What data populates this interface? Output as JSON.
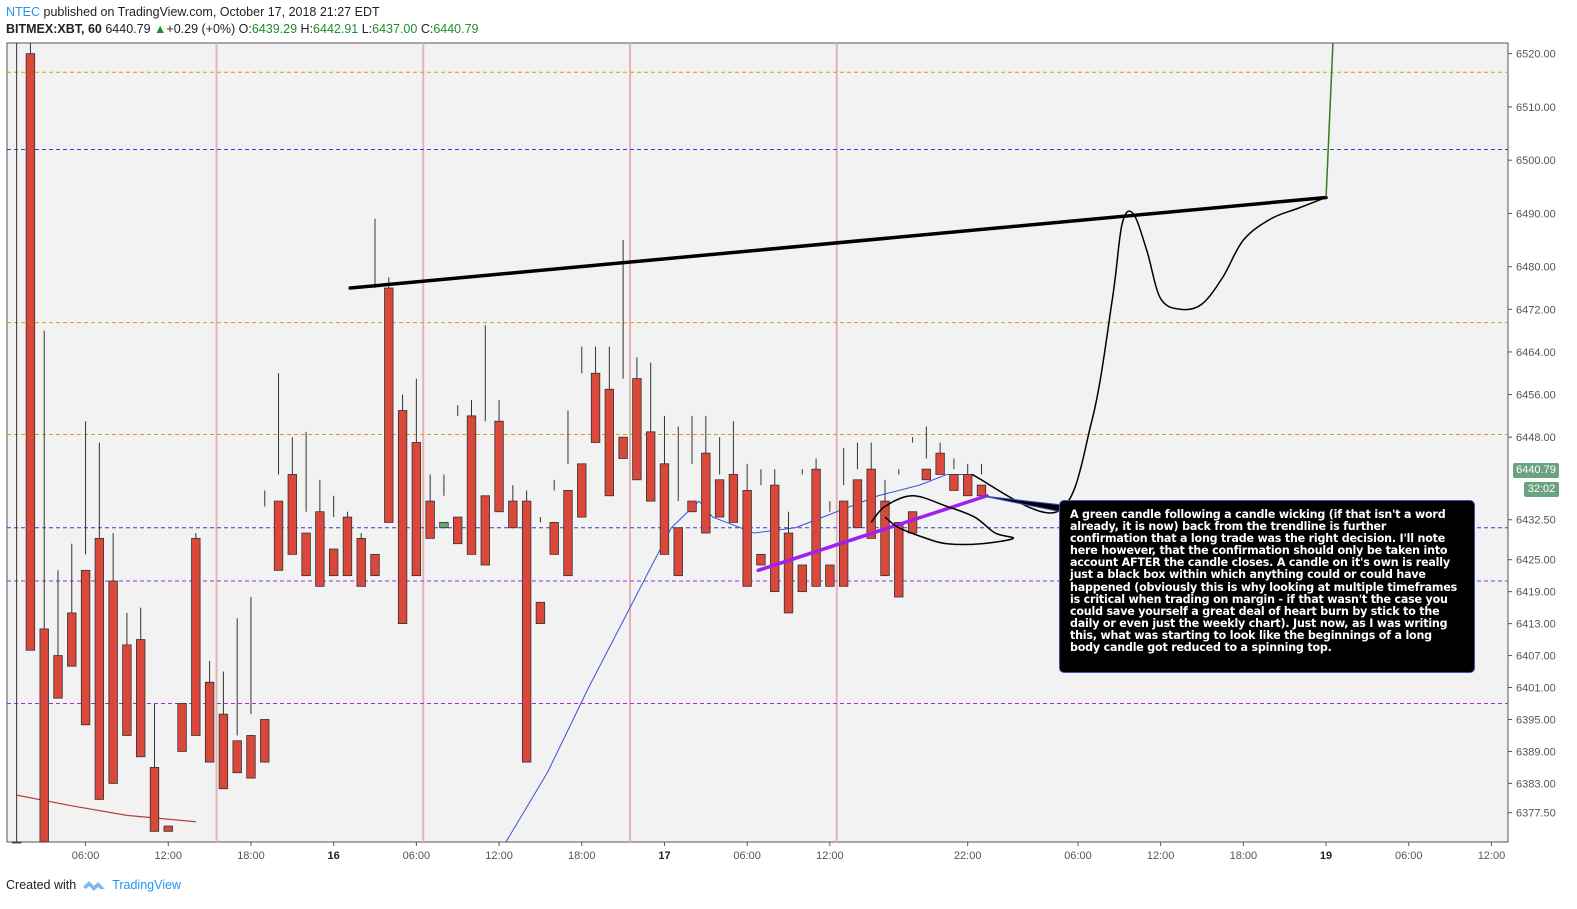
{
  "header": {
    "author": "NTEC",
    "published": "published on TradingView.com, October 17, 2018 21:27 EDT",
    "symbol": "BITMEX:XBT, 60",
    "last": "6440.79",
    "change_arrow": "▲",
    "change": "+0.29 (+0%)",
    "o_label": "O:",
    "o": "6439.29",
    "h_label": "H:",
    "h": "6442.91",
    "l_label": "L:",
    "l": "6437.00",
    "c_label": "C:",
    "c": "6440.79"
  },
  "footer": {
    "created_with": "Created with",
    "brand": "TradingView"
  },
  "price_badge": "6440.79",
  "time_badge": "32:02",
  "annotation": "A green candle following a candle wicking (if that isn't a word already, it is now) back from the trendline is further confirmation that a long trade was the right decision.  I'll note here however, that the confirmation should only be taken into account AFTER the candle closes.  A candle on it's own is really just a black box within which anything could or could have happened (obviously this is why looking at multiple timeframes is critical when trading on margin - if that wasn't the case you could save yourself a great deal of heart burn by stick to the daily or even just the weekly chart).  Just now, as I was writing this, what was starting to look like the beginnings of a long body candle got reduced to a spinning top.",
  "colors": {
    "up": "#6aa37f",
    "down": "#d9483b",
    "grid_bg": "#f2f2f2",
    "orange_line": "#d4a017",
    "blue_line": "#3b3bd1",
    "purple_line": "#9b30d9",
    "session": "#e3b4b4",
    "ma_blue": "#3a52d9",
    "ma_red": "#b0413e",
    "trendline": "#000000",
    "purple_trend": "#a020f0",
    "projection_green": "#3a7a1e"
  },
  "chart_data": {
    "type": "candlestick",
    "symbol": "BITMEX:XBT",
    "interval": "60",
    "ylim": [
      6372,
      6522
    ],
    "y_ticks": [
      6377.5,
      6383.0,
      6389.0,
      6395.0,
      6401.0,
      6407.0,
      6413.0,
      6419.0,
      6425.0,
      6432.5,
      6440.79,
      6448.0,
      6456.0,
      6464.0,
      6472.0,
      6480.0,
      6490.0,
      6500.0,
      6510.0,
      6520.0
    ],
    "y_tick_labels": [
      "6377.50",
      "6383.00",
      "6389.00",
      "6395.00",
      "6401.00",
      "6407.00",
      "6413.00",
      "6419.00",
      "6425.00",
      "6432.50",
      "6440.79",
      "6448.00",
      "6456.00",
      "6464.00",
      "6472.00",
      "6480.00",
      "6490.00",
      "6500.00",
      "6510.00",
      "6520.00"
    ],
    "x_ticks": [
      {
        "label": "06:00",
        "bar": 5
      },
      {
        "label": "12:00",
        "bar": 11
      },
      {
        "label": "18:00",
        "bar": 17
      },
      {
        "label": "16",
        "bar": 23,
        "bold": true
      },
      {
        "label": "06:00",
        "bar": 29
      },
      {
        "label": "12:00",
        "bar": 35
      },
      {
        "label": "18:00",
        "bar": 41
      },
      {
        "label": "17",
        "bar": 47,
        "bold": true
      },
      {
        "label": "06:00",
        "bar": 53
      },
      {
        "label": "12:00",
        "bar": 59
      },
      {
        "label": "22:00",
        "bar": 69
      },
      {
        "label": "06:00",
        "bar": 77
      },
      {
        "label": "12:00",
        "bar": 83
      },
      {
        "label": "18:00",
        "bar": 89
      },
      {
        "label": "19",
        "bar": 95,
        "bold": true
      },
      {
        "label": "06:00",
        "bar": 101
      },
      {
        "label": "12:00",
        "bar": 107
      }
    ],
    "x_range": [
      -0.7,
      108.2
    ],
    "candles": [
      [
        6305,
        6300,
        6530,
        6296
      ],
      [
        6520,
        6522,
        6412,
        6408
      ],
      [
        6412,
        6468,
        6405,
        6372
      ],
      [
        6407,
        6423,
        6402,
        6399
      ],
      [
        6415,
        6428,
        6413,
        6405
      ],
      [
        6423,
        6451,
        6426,
        6394
      ],
      [
        6429,
        6447,
        6406,
        6380
      ],
      [
        6421,
        6430,
        6409,
        6383
      ],
      [
        6409,
        6415,
        6402,
        6392
      ],
      [
        6410,
        6416,
        6397,
        6388
      ],
      [
        6386,
        6398,
        6375,
        6374
      ],
      [
        6375,
        6398,
        6398,
        6374
      ],
      [
        6398,
        6429,
        6429,
        6389
      ],
      [
        6429,
        6430,
        6401,
        6392
      ],
      [
        6402,
        6406,
        6396,
        6387
      ],
      [
        6396,
        6404,
        6390,
        6382
      ],
      [
        6391,
        6414,
        6392,
        6385
      ],
      [
        6392,
        6418,
        6396,
        6384
      ],
      [
        6395,
        6438,
        6435,
        6387
      ],
      [
        6436,
        6460,
        6441,
        6423
      ],
      [
        6441,
        6448,
        6430,
        6426
      ],
      [
        6430,
        6449,
        6434,
        6422
      ],
      [
        6434,
        6440,
        6429,
        6420
      ],
      [
        6427,
        6437,
        6433,
        6422
      ],
      [
        6433,
        6434,
        6424,
        6422
      ],
      [
        6429,
        6430,
        6425,
        6420
      ],
      [
        6426,
        6489,
        6476,
        6422
      ],
      [
        6476,
        6478,
        6453,
        6432
      ],
      [
        6453,
        6456,
        6447,
        6413
      ],
      [
        6447,
        6459,
        6436,
        6422
      ],
      [
        6436,
        6441,
        6431,
        6429
      ],
      [
        6431,
        6441,
        6437,
        6432
      ],
      [
        6433,
        6454,
        6452,
        6428
      ],
      [
        6452,
        6455,
        6436,
        6426
      ],
      [
        6437,
        6469,
        6451,
        6424
      ],
      [
        6451,
        6455,
        6437,
        6434
      ],
      [
        6436,
        6439,
        6436,
        6431
      ],
      [
        6436,
        6438,
        6417,
        6387
      ],
      [
        6417,
        6433,
        6432,
        6413
      ],
      [
        6432,
        6440,
        6438,
        6426
      ],
      [
        6438,
        6453,
        6443,
        6422
      ],
      [
        6443,
        6465,
        6460,
        6433
      ],
      [
        6460,
        6465,
        6457,
        6447
      ],
      [
        6457,
        6465,
        6448,
        6437
      ],
      [
        6448,
        6485,
        6459,
        6444
      ],
      [
        6459,
        6463,
        6449,
        6440
      ],
      [
        6449,
        6462,
        6443,
        6436
      ],
      [
        6443,
        6452,
        6430,
        6426
      ],
      [
        6431,
        6450,
        6436,
        6422
      ],
      [
        6436,
        6452,
        6443,
        6434
      ],
      [
        6445,
        6452,
        6438,
        6430
      ],
      [
        6440,
        6448,
        6441,
        6433
      ],
      [
        6441,
        6451,
        6438,
        6432
      ],
      [
        6438,
        6443,
        6426,
        6420
      ],
      [
        6426,
        6442,
        6439,
        6424
      ],
      [
        6439,
        6442,
        6430,
        6419
      ],
      [
        6430,
        6434,
        6424,
        6415
      ],
      [
        6424,
        6441,
        6442,
        6419
      ],
      [
        6442,
        6444,
        6428,
        6420
      ],
      [
        6424,
        6434,
        6436,
        6420
      ],
      [
        6436,
        6446,
        6439,
        6420
      ],
      [
        6440,
        6447,
        6442,
        6431
      ],
      [
        6442,
        6447,
        6436,
        6429
      ],
      [
        6436,
        6440,
        6429,
        6422
      ],
      [
        6432,
        6441,
        6442,
        6418
      ],
      [
        6434,
        6448,
        6447,
        6430
      ],
      [
        6442,
        6450,
        6444,
        6440
      ],
      [
        6445,
        6447,
        6444,
        6441
      ],
      [
        6441,
        6444,
        6442,
        6438
      ],
      [
        6441,
        6443,
        6440,
        6437
      ],
      [
        6439,
        6443,
        6441,
        6437
      ]
    ],
    "lines": [
      {
        "name": "",
        "style": "dashed",
        "color": "orange",
        "y": 6516.5
      },
      {
        "name": "",
        "style": "dashed",
        "color": "blue",
        "y": 6502.0
      },
      {
        "name": "",
        "style": "dashed",
        "color": "orange",
        "y": 6469.5
      },
      {
        "name": "",
        "style": "dashed",
        "color": "orange",
        "y": 6448.5
      },
      {
        "name": "",
        "style": "dashed",
        "color": "blue",
        "y": 6431.0
      },
      {
        "name": "",
        "style": "dashed",
        "color": "purple",
        "y": 6421.0
      },
      {
        "name": "",
        "style": "dashed",
        "color": "purple",
        "y": 6398.0
      }
    ],
    "session_marks_bars": [
      14.5,
      29.5,
      44.5,
      59.5
    ],
    "ma_blue": [
      [
        35.5,
        6372
      ],
      [
        38.5,
        6385
      ],
      [
        41.5,
        6401
      ],
      [
        44.5,
        6416
      ],
      [
        47.5,
        6431
      ],
      [
        49.5,
        6436
      ],
      [
        50.5,
        6433
      ],
      [
        53.5,
        6430
      ],
      [
        56.5,
        6431
      ],
      [
        59.5,
        6434
      ],
      [
        62.5,
        6437
      ],
      [
        65.5,
        6439
      ],
      [
        67.5,
        6441
      ],
      [
        69,
        6441
      ]
    ],
    "ma_red": [
      [
        0,
        6380.8
      ],
      [
        4,
        6378.8
      ],
      [
        8,
        6377.0
      ],
      [
        13,
        6375.8
      ]
    ],
    "trendline_black": [
      [
        24.2,
        6476
      ],
      [
        95.0,
        6493
      ]
    ],
    "trendline_purple": [
      [
        53.8,
        6423
      ],
      [
        70.4,
        6437
      ]
    ],
    "projection_green": [
      [
        95.0,
        6493
      ],
      [
        95.5,
        6524
      ]
    ],
    "drawing_arrow": [
      [
        69.3,
        6441
      ],
      [
        75.5,
        6434
      ],
      [
        78.0,
        6451
      ],
      [
        79.5,
        6474
      ],
      [
        80.2,
        6488
      ],
      [
        81.0,
        6490
      ],
      [
        82.0,
        6483
      ],
      [
        83.0,
        6474
      ],
      [
        84.5,
        6472
      ],
      [
        86.0,
        6473
      ],
      [
        87.5,
        6478
      ],
      [
        89.0,
        6485
      ],
      [
        91.0,
        6489
      ],
      [
        93.0,
        6491
      ],
      [
        95.0,
        6493
      ]
    ],
    "drawing_curl": [
      [
        62.0,
        6432
      ],
      [
        63.0,
        6435
      ],
      [
        65.0,
        6437
      ],
      [
        67.5,
        6435
      ],
      [
        69.5,
        6433
      ],
      [
        71.0,
        6430
      ],
      [
        72.3,
        6429
      ],
      [
        70.0,
        6428
      ],
      [
        67.5,
        6428
      ],
      [
        66.0,
        6429
      ],
      [
        64.0,
        6431
      ],
      [
        63.0,
        6433
      ]
    ]
  }
}
